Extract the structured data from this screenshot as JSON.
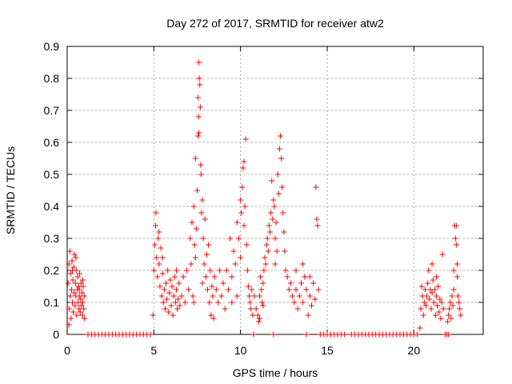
{
  "chart_data": {
    "type": "scatter",
    "title": "Day 272 of 2017, SRMTID for receiver atw2",
    "xlabel": "GPS time / hours",
    "ylabel": "SRMTID / TECUs",
    "xlim": [
      0,
      24
    ],
    "ylim": [
      0,
      0.9
    ],
    "xticks": [
      0,
      5,
      10,
      15,
      20
    ],
    "yticks": [
      0,
      0.1,
      0.2,
      0.3,
      0.4,
      0.5,
      0.6,
      0.7,
      0.8,
      0.9
    ],
    "grid": true,
    "marker": "+",
    "color": "#ff0000",
    "series": [
      {
        "name": "SRMTID",
        "points": [
          [
            0.05,
            0.16
          ],
          [
            0.1,
            0.22
          ],
          [
            0.12,
            0.08
          ],
          [
            0.15,
            0.26
          ],
          [
            0.18,
            0.12
          ],
          [
            0.2,
            0.19
          ],
          [
            0.22,
            0.05
          ],
          [
            0.25,
            0.14
          ],
          [
            0.28,
            0.23
          ],
          [
            0.3,
            0.1
          ],
          [
            0.33,
            0.17
          ],
          [
            0.35,
            0.07
          ],
          [
            0.38,
            0.21
          ],
          [
            0.4,
            0.13
          ],
          [
            0.42,
            0.25
          ],
          [
            0.45,
            0.09
          ],
          [
            0.48,
            0.16
          ],
          [
            0.5,
            0.12
          ],
          [
            0.52,
            0.2
          ],
          [
            0.55,
            0.06
          ],
          [
            0.58,
            0.14
          ],
          [
            0.6,
            0.18
          ],
          [
            0.62,
            0.1
          ],
          [
            0.65,
            0.15
          ],
          [
            0.68,
            0.08
          ],
          [
            0.7,
            0.12
          ],
          [
            0.72,
            0.19
          ],
          [
            0.75,
            0.07
          ],
          [
            0.78,
            0.11
          ],
          [
            0.8,
            0.16
          ],
          [
            0.82,
            0.09
          ],
          [
            0.85,
            0.13
          ],
          [
            0.88,
            0.06
          ],
          [
            0.9,
            0.1
          ],
          [
            0.92,
            0.15
          ],
          [
            0.95,
            0.08
          ],
          [
            0.98,
            0.12
          ],
          [
            1.0,
            0.05
          ],
          [
            0.1,
            0.03
          ],
          [
            0.3,
            0.2
          ],
          [
            0.5,
            0.24
          ],
          [
            0.7,
            0.14
          ],
          [
            0.9,
            0.17
          ],
          [
            1.2,
            0.0
          ],
          [
            1.4,
            0.0
          ],
          [
            1.6,
            0.0
          ],
          [
            1.8,
            0.0
          ],
          [
            2.0,
            0.0
          ],
          [
            2.2,
            0.0
          ],
          [
            2.4,
            0.0
          ],
          [
            2.6,
            0.0
          ],
          [
            2.8,
            0.0
          ],
          [
            3.0,
            0.0
          ],
          [
            3.2,
            0.0
          ],
          [
            3.4,
            0.0
          ],
          [
            3.6,
            0.0
          ],
          [
            3.8,
            0.0
          ],
          [
            4.0,
            0.0
          ],
          [
            4.2,
            0.0
          ],
          [
            4.4,
            0.0
          ],
          [
            4.6,
            0.0
          ],
          [
            4.8,
            0.0
          ],
          [
            4.95,
            0.06
          ],
          [
            5.0,
            0.2
          ],
          [
            5.05,
            0.28
          ],
          [
            5.1,
            0.34
          ],
          [
            5.12,
            0.38
          ],
          [
            5.15,
            0.24
          ],
          [
            5.2,
            0.18
          ],
          [
            5.25,
            0.3
          ],
          [
            5.3,
            0.22
          ],
          [
            5.35,
            0.15
          ],
          [
            5.4,
            0.27
          ],
          [
            5.45,
            0.12
          ],
          [
            5.5,
            0.19
          ],
          [
            5.55,
            0.1
          ],
          [
            5.6,
            0.14
          ],
          [
            5.65,
            0.08
          ],
          [
            5.7,
            0.16
          ],
          [
            5.75,
            0.11
          ],
          [
            5.8,
            0.2
          ],
          [
            5.85,
            0.07
          ],
          [
            5.9,
            0.13
          ],
          [
            5.95,
            0.17
          ],
          [
            6.0,
            0.09
          ],
          [
            6.05,
            0.15
          ],
          [
            6.1,
            0.06
          ],
          [
            6.15,
            0.12
          ],
          [
            6.2,
            0.18
          ],
          [
            6.25,
            0.1
          ],
          [
            6.3,
            0.14
          ],
          [
            6.35,
            0.08
          ],
          [
            6.4,
            0.11
          ],
          [
            6.45,
            0.16
          ],
          [
            6.5,
            0.09
          ],
          [
            5.5,
            0.24
          ],
          [
            5.3,
            0.32
          ],
          [
            6.3,
            0.2
          ],
          [
            6.6,
            0.12
          ],
          [
            6.7,
            0.18
          ],
          [
            6.8,
            0.1
          ],
          [
            6.9,
            0.2
          ],
          [
            7.0,
            0.14
          ],
          [
            7.1,
            0.3
          ],
          [
            7.15,
            0.22
          ],
          [
            7.2,
            0.35
          ],
          [
            7.25,
            0.12
          ],
          [
            7.3,
            0.4
          ],
          [
            7.35,
            0.28
          ],
          [
            7.4,
            0.55
          ],
          [
            7.45,
            0.33
          ],
          [
            7.5,
            0.45
          ],
          [
            7.55,
            0.62
          ],
          [
            7.58,
            0.68
          ],
          [
            7.6,
            0.85
          ],
          [
            7.62,
            0.8
          ],
          [
            7.65,
            0.78
          ],
          [
            7.68,
            0.71
          ],
          [
            7.7,
            0.53
          ],
          [
            7.72,
            0.5
          ],
          [
            7.75,
            0.38
          ],
          [
            7.8,
            0.42
          ],
          [
            7.85,
            0.3
          ],
          [
            7.9,
            0.22
          ],
          [
            7.95,
            0.36
          ],
          [
            8.0,
            0.18
          ],
          [
            8.05,
            0.25
          ],
          [
            8.1,
            0.14
          ],
          [
            8.15,
            0.28
          ],
          [
            8.2,
            0.1
          ],
          [
            8.25,
            0.2
          ],
          [
            8.3,
            0.06
          ],
          [
            8.35,
            0.15
          ],
          [
            8.4,
            0.12
          ],
          [
            8.45,
            0.05
          ],
          [
            8.5,
            0.18
          ],
          [
            7.4,
            0.24
          ],
          [
            7.8,
            0.16
          ],
          [
            7.3,
            0.1
          ],
          [
            7.6,
            0.63
          ],
          [
            7.55,
            0.74
          ],
          [
            8.6,
            0.14
          ],
          [
            8.7,
            0.1
          ],
          [
            8.8,
            0.2
          ],
          [
            8.9,
            0.12
          ],
          [
            9.0,
            0.16
          ],
          [
            9.1,
            0.08
          ],
          [
            9.2,
            0.2
          ],
          [
            9.3,
            0.14
          ],
          [
            9.4,
            0.3
          ],
          [
            9.5,
            0.18
          ],
          [
            9.6,
            0.26
          ],
          [
            9.7,
            0.22
          ],
          [
            9.8,
            0.35
          ],
          [
            9.9,
            0.3
          ],
          [
            10.0,
            0.42
          ],
          [
            10.05,
            0.38
          ],
          [
            10.1,
            0.46
          ],
          [
            10.15,
            0.52
          ],
          [
            10.2,
            0.54
          ],
          [
            10.25,
            0.4
          ],
          [
            10.3,
            0.61
          ],
          [
            10.35,
            0.28
          ],
          [
            10.4,
            0.2
          ],
          [
            10.45,
            0.15
          ],
          [
            10.5,
            0.12
          ],
          [
            10.55,
            0.1
          ],
          [
            10.6,
            0.08
          ],
          [
            10.65,
            0.14
          ],
          [
            10.7,
            0.06
          ],
          [
            9.5,
            0.1
          ],
          [
            9.8,
            0.12
          ],
          [
            10.0,
            0.24
          ],
          [
            10.2,
            0.34
          ],
          [
            10.75,
            0.0
          ],
          [
            10.8,
            0.12
          ],
          [
            10.9,
            0.08
          ],
          [
            11.0,
            0.06
          ],
          [
            11.05,
            0.04
          ],
          [
            11.1,
            0.12
          ],
          [
            11.15,
            0.18
          ],
          [
            11.2,
            0.14
          ],
          [
            11.25,
            0.1
          ],
          [
            11.3,
            0.16
          ],
          [
            11.35,
            0.2
          ],
          [
            11.4,
            0.24
          ],
          [
            11.45,
            0.22
          ],
          [
            11.5,
            0.28
          ],
          [
            11.55,
            0.3
          ],
          [
            11.6,
            0.26
          ],
          [
            11.65,
            0.34
          ],
          [
            11.7,
            0.32
          ],
          [
            11.75,
            0.38
          ],
          [
            11.8,
            0.48
          ],
          [
            11.85,
            0.36
          ],
          [
            11.9,
            0.42
          ],
          [
            11.95,
            0.4
          ],
          [
            12.0,
            0.3
          ],
          [
            12.05,
            0.35
          ],
          [
            12.1,
            0.26
          ],
          [
            12.15,
            0.5
          ],
          [
            12.2,
            0.44
          ],
          [
            12.25,
            0.58
          ],
          [
            12.3,
            0.62
          ],
          [
            12.35,
            0.55
          ],
          [
            12.4,
            0.46
          ],
          [
            12.45,
            0.38
          ],
          [
            12.5,
            0.32
          ],
          [
            12.55,
            0.26
          ],
          [
            12.6,
            0.2
          ],
          [
            11.1,
            0.05
          ],
          [
            11.3,
            0.09
          ],
          [
            12.0,
            0.22
          ],
          [
            11.9,
            0.0
          ],
          [
            12.7,
            0.18
          ],
          [
            12.8,
            0.14
          ],
          [
            12.9,
            0.16
          ],
          [
            13.0,
            0.12
          ],
          [
            13.1,
            0.1
          ],
          [
            13.2,
            0.14
          ],
          [
            13.3,
            0.08
          ],
          [
            13.4,
            0.12
          ],
          [
            13.5,
            0.16
          ],
          [
            13.6,
            0.1
          ],
          [
            13.7,
            0.18
          ],
          [
            13.8,
            0.14
          ],
          [
            13.9,
            0.06
          ],
          [
            14.0,
            0.12
          ],
          [
            14.1,
            0.09
          ],
          [
            14.2,
            0.16
          ],
          [
            14.3,
            0.11
          ],
          [
            14.35,
            0.46
          ],
          [
            14.4,
            0.36
          ],
          [
            14.45,
            0.34
          ],
          [
            14.5,
            0.14
          ],
          [
            13.2,
            0.2
          ],
          [
            13.6,
            0.22
          ],
          [
            14.0,
            0.18
          ],
          [
            13.8,
            0.0
          ],
          [
            14.6,
            0.0
          ],
          [
            14.8,
            0.0
          ],
          [
            15.0,
            0.0
          ],
          [
            15.2,
            0.0
          ],
          [
            15.4,
            0.0
          ],
          [
            15.6,
            0.0
          ],
          [
            15.8,
            0.0
          ],
          [
            16.0,
            0.0
          ],
          [
            16.4,
            0.0
          ],
          [
            16.6,
            0.0
          ],
          [
            16.8,
            0.0
          ],
          [
            17.0,
            0.0
          ],
          [
            17.2,
            0.0
          ],
          [
            17.4,
            0.0
          ],
          [
            17.6,
            0.0
          ],
          [
            17.8,
            0.0
          ],
          [
            18.0,
            0.0
          ],
          [
            18.2,
            0.0
          ],
          [
            18.4,
            0.0
          ],
          [
            18.6,
            0.0
          ],
          [
            18.8,
            0.0
          ],
          [
            19.0,
            0.0
          ],
          [
            19.2,
            0.0
          ],
          [
            19.4,
            0.0
          ],
          [
            19.6,
            0.0
          ],
          [
            19.8,
            0.0
          ],
          [
            20.0,
            0.0
          ],
          [
            20.2,
            0.0
          ],
          [
            20.35,
            0.02
          ],
          [
            20.4,
            0.08
          ],
          [
            20.45,
            0.15
          ],
          [
            20.5,
            0.12
          ],
          [
            20.55,
            0.06
          ],
          [
            20.6,
            0.1
          ],
          [
            20.65,
            0.14
          ],
          [
            20.7,
            0.09
          ],
          [
            20.75,
            0.12
          ],
          [
            20.8,
            0.16
          ],
          [
            20.85,
            0.2
          ],
          [
            20.9,
            0.11
          ],
          [
            20.95,
            0.14
          ],
          [
            21.0,
            0.08
          ],
          [
            21.05,
            0.13
          ],
          [
            21.1,
            0.17
          ],
          [
            21.15,
            0.1
          ],
          [
            21.2,
            0.14
          ],
          [
            21.25,
            0.06
          ],
          [
            21.3,
            0.12
          ],
          [
            21.35,
            0.09
          ],
          [
            21.4,
            0.15
          ],
          [
            21.45,
            0.07
          ],
          [
            21.5,
            0.11
          ],
          [
            21.55,
            0.05
          ],
          [
            21.6,
            0.1
          ],
          [
            21.65,
            0.25
          ],
          [
            21.7,
            0.08
          ],
          [
            21.05,
            0.22
          ],
          [
            21.3,
            0.18
          ],
          [
            21.8,
            0.0
          ],
          [
            21.9,
            0.0
          ],
          [
            22.0,
            0.0
          ],
          [
            21.95,
            0.04
          ],
          [
            22.0,
            0.06
          ],
          [
            22.05,
            0.08
          ],
          [
            22.1,
            0.1
          ],
          [
            22.15,
            0.05
          ],
          [
            22.2,
            0.12
          ],
          [
            22.25,
            0.09
          ],
          [
            22.3,
            0.14
          ],
          [
            22.35,
            0.34
          ],
          [
            22.4,
            0.3
          ],
          [
            22.45,
            0.28
          ],
          [
            22.5,
            0.18
          ],
          [
            22.55,
            0.12
          ],
          [
            22.6,
            0.1
          ],
          [
            22.65,
            0.08
          ],
          [
            22.7,
            0.06
          ],
          [
            22.3,
            0.2
          ],
          [
            22.5,
            0.22
          ],
          [
            22.45,
            0.34
          ]
        ]
      }
    ]
  }
}
